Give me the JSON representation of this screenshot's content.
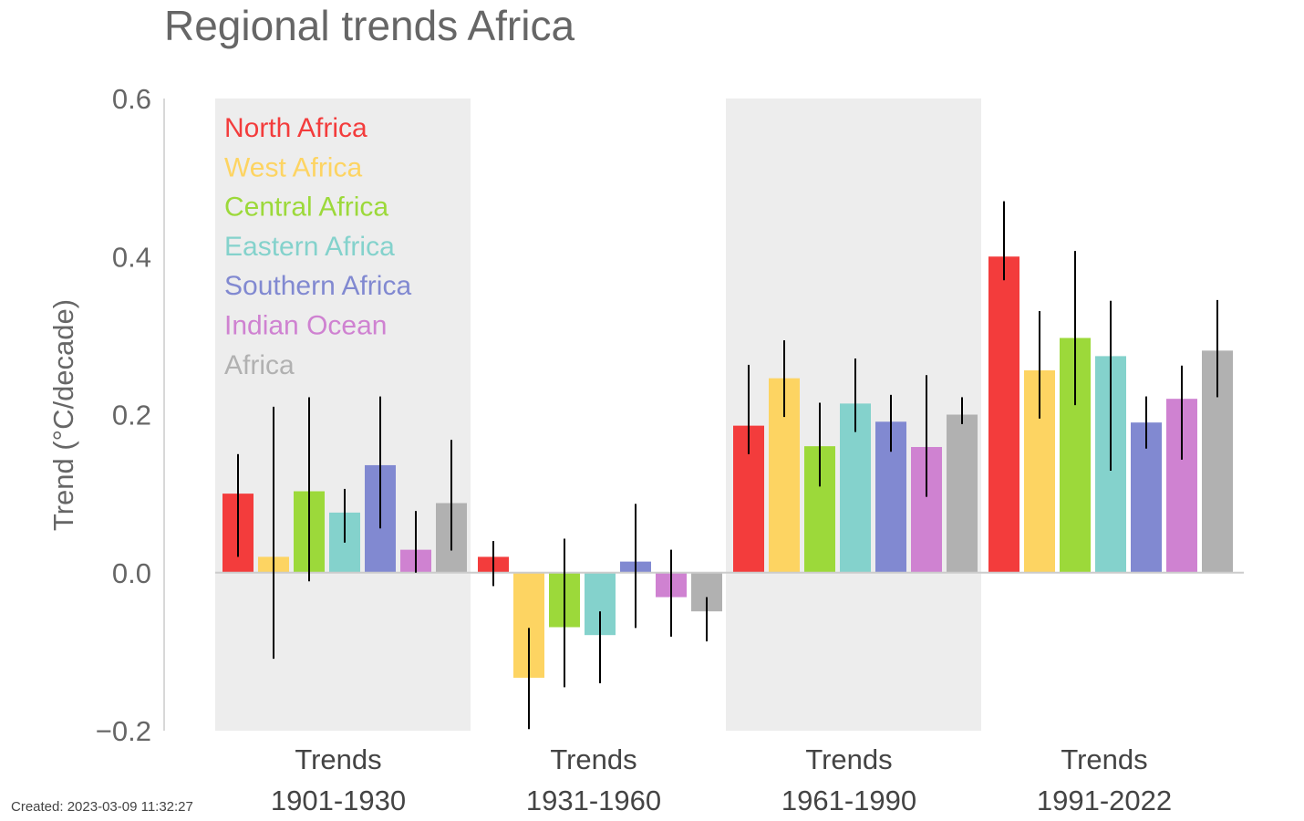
{
  "chart_data": {
    "type": "bar",
    "title": "Regional trends Africa",
    "ylabel": "Trend (°C/decade)",
    "ylim": [
      -0.2,
      0.6
    ],
    "yticks": [
      "0.6",
      "0.4",
      "0.2",
      "0.0",
      "−0.2"
    ],
    "legend_position": "top-left",
    "shaded_periods": [
      "1901-1930",
      "1961-1990"
    ],
    "categories": [
      {
        "line1": "Trends",
        "line2": "1901-1930"
      },
      {
        "line1": "Trends",
        "line2": "1931-1960"
      },
      {
        "line1": "Trends",
        "line2": "1961-1990"
      },
      {
        "line1": "Trends",
        "line2": "1991-2022"
      }
    ],
    "series": [
      {
        "name": "North Africa",
        "color": "#f33c3c",
        "values": [
          0.1,
          0.02,
          0.186,
          0.4
        ],
        "err_low": [
          0.02,
          -0.017,
          0.15,
          0.37
        ],
        "err_high": [
          0.15,
          0.04,
          0.263,
          0.47
        ]
      },
      {
        "name": "West Africa",
        "color": "#fdd462",
        "values": [
          0.02,
          -0.133,
          0.246,
          0.256
        ],
        "err_low": [
          -0.109,
          -0.198,
          0.197,
          0.195
        ],
        "err_high": [
          0.21,
          -0.07,
          0.294,
          0.331
        ]
      },
      {
        "name": "Central Africa",
        "color": "#9cd93a",
        "values": [
          0.103,
          -0.069,
          0.16,
          0.297
        ],
        "err_low": [
          -0.011,
          -0.145,
          0.109,
          0.212
        ],
        "err_high": [
          0.222,
          0.043,
          0.215,
          0.407
        ]
      },
      {
        "name": "Eastern Africa",
        "color": "#84d2cc",
        "values": [
          0.076,
          -0.079,
          0.214,
          0.274
        ],
        "err_low": [
          0.038,
          -0.14,
          0.178,
          0.129
        ],
        "err_high": [
          0.106,
          -0.049,
          0.271,
          0.344
        ]
      },
      {
        "name": "Southern Africa",
        "color": "#8189d1",
        "values": [
          0.136,
          0.014,
          0.191,
          0.19
        ],
        "err_low": [
          0.056,
          -0.07,
          0.153,
          0.157
        ],
        "err_high": [
          0.223,
          0.087,
          0.225,
          0.223
        ]
      },
      {
        "name": "Indian Ocean",
        "color": "#cf82d1",
        "values": [
          0.029,
          -0.031,
          0.159,
          0.22
        ],
        "err_low": [
          0.0,
          -0.081,
          0.096,
          0.143
        ],
        "err_high": [
          0.078,
          0.029,
          0.25,
          0.262
        ]
      },
      {
        "name": "Africa",
        "color": "#b1b1b1",
        "values": [
          0.088,
          -0.049,
          0.2,
          0.281
        ],
        "err_low": [
          0.028,
          -0.087,
          0.188,
          0.222
        ],
        "err_high": [
          0.168,
          -0.031,
          0.222,
          0.345
        ]
      }
    ]
  },
  "footer": {
    "created": "Created: 2023-03-09 11:32:27"
  }
}
